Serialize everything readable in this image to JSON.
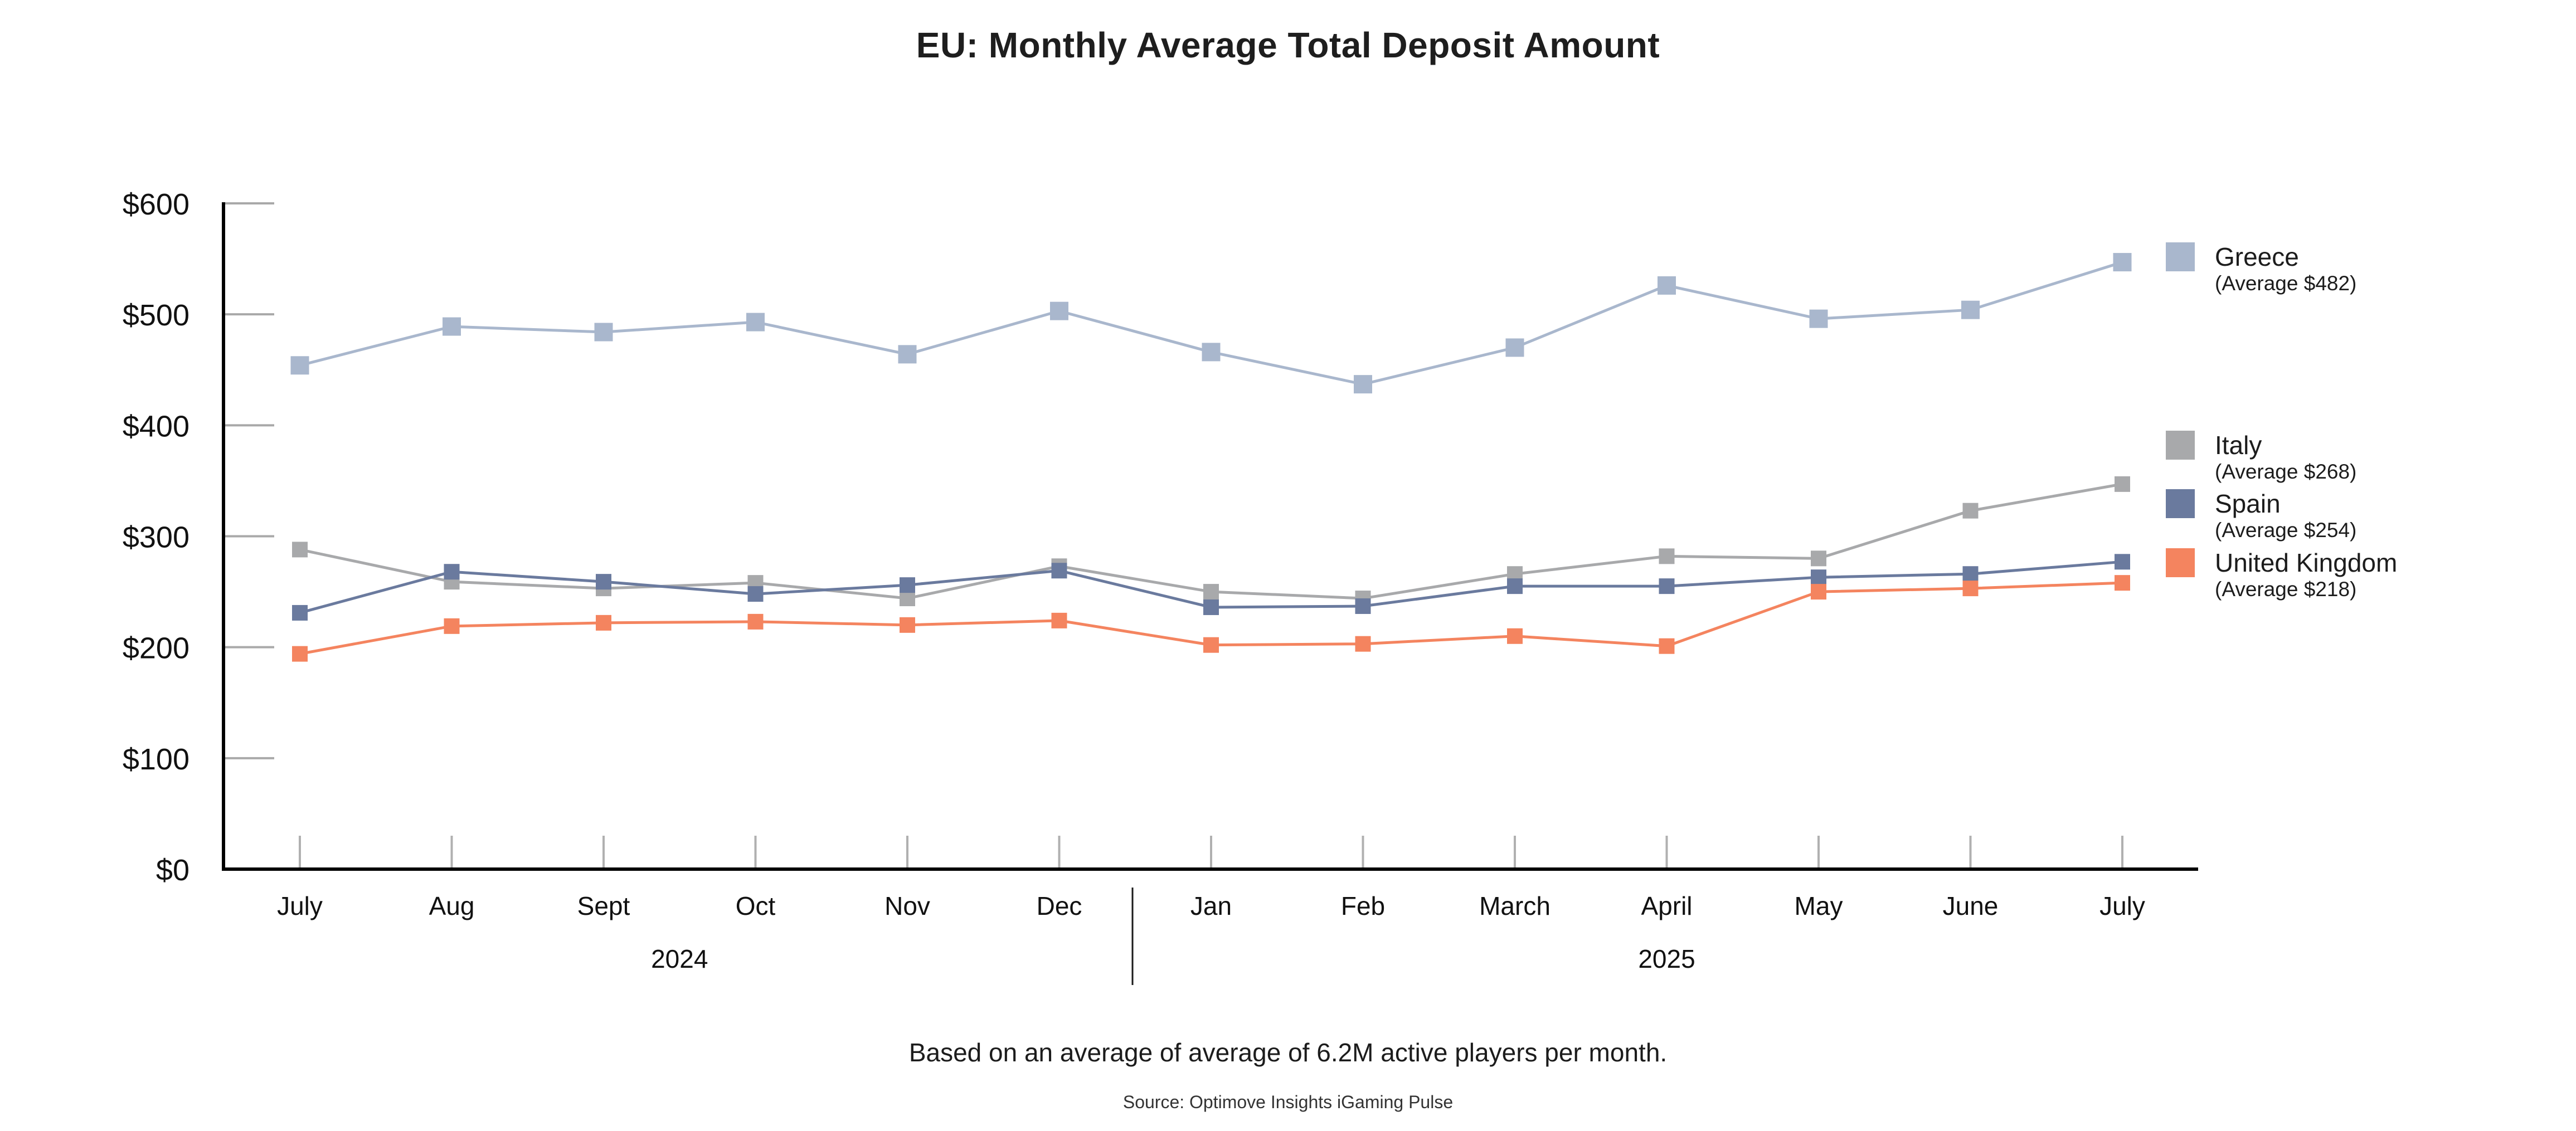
{
  "chart_data": {
    "type": "line",
    "title": "EU: Monthly Average Total Deposit Amount",
    "xlabel": "",
    "ylabel": "",
    "ylim": [
      0,
      600
    ],
    "yticks": [
      0,
      100,
      200,
      300,
      400,
      500,
      600
    ],
    "ytick_labels": [
      "$0",
      "$100",
      "$200",
      "$300",
      "$400",
      "$500",
      "$600"
    ],
    "categories": [
      "July",
      "Aug",
      "Sept",
      "Oct",
      "Nov",
      "Dec",
      "Jan",
      "Feb",
      "March",
      "April",
      "May",
      "June",
      "July"
    ],
    "year_groups": [
      {
        "label": "2024",
        "start_index": 0,
        "end_index": 5
      },
      {
        "label": "2025",
        "start_index": 6,
        "end_index": 12
      }
    ],
    "grid": false,
    "legend_position": "right",
    "series": [
      {
        "name": "Greece",
        "subtitle": "(Average $482)",
        "color": "#A9B7CD",
        "values": [
          454,
          489,
          484,
          493,
          464,
          503,
          466,
          437,
          470,
          526,
          496,
          504,
          547
        ]
      },
      {
        "name": "Italy",
        "subtitle": "(Average $268)",
        "color": "#A8A9AB",
        "values": [
          288,
          259,
          253,
          258,
          244,
          273,
          250,
          244,
          266,
          282,
          280,
          323,
          347
        ]
      },
      {
        "name": "Spain",
        "subtitle": "(Average $254)",
        "color": "#6A7A9E",
        "values": [
          231,
          268,
          259,
          248,
          256,
          269,
          236,
          237,
          255,
          255,
          263,
          266,
          277
        ]
      },
      {
        "name": "United Kingdom",
        "subtitle": "(Average $218)",
        "color": "#F4845F",
        "values": [
          194,
          219,
          222,
          223,
          220,
          224,
          202,
          203,
          210,
          201,
          250,
          253,
          258
        ]
      }
    ]
  },
  "footnote": "Based on an average of average of 6.2M active players per month.",
  "source": "Source: Optimove Insights iGaming Pulse"
}
